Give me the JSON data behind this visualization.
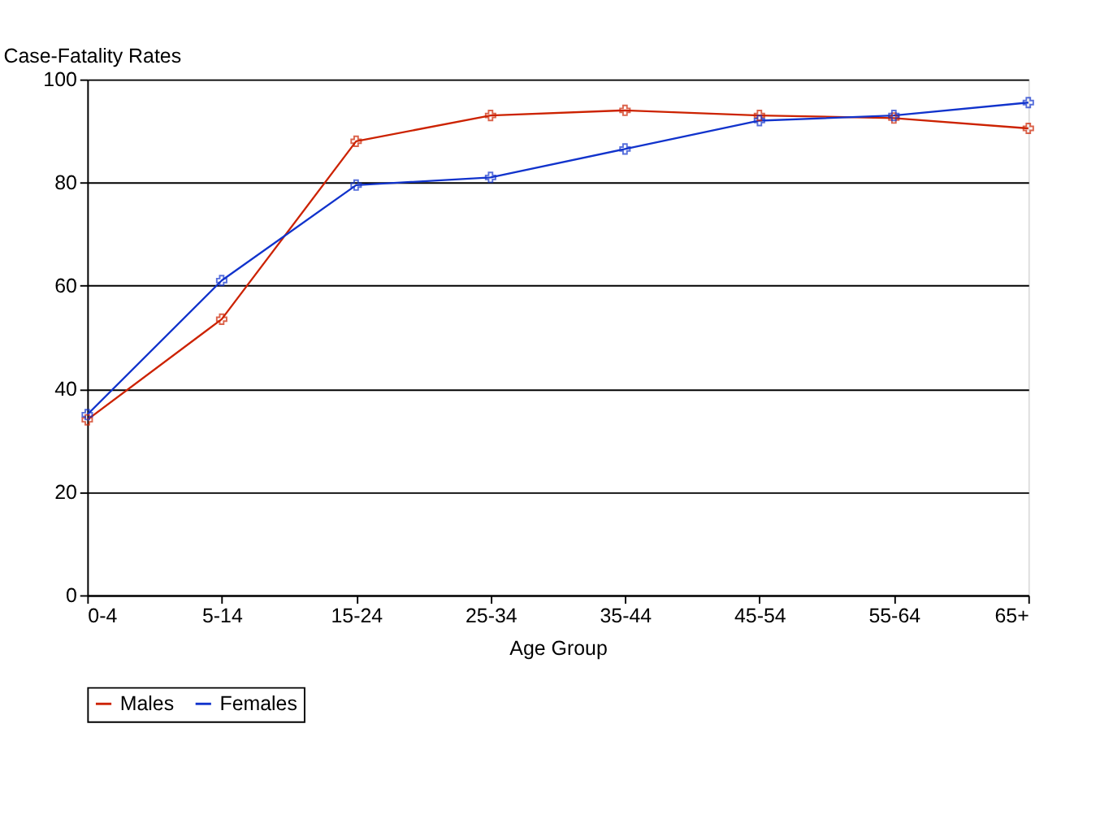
{
  "chart_data": {
    "type": "line",
    "ylabel": "Case-Fatality Rates",
    "xlabel": "Age Group",
    "categories": [
      "0-4",
      "5-14",
      "15-24",
      "25-34",
      "35-44",
      "45-54",
      "55-64",
      "65+"
    ],
    "series": [
      {
        "name": "Males",
        "color": "#cc2200",
        "values": [
          34,
          53.5,
          88,
          93,
          94,
          93,
          92.5,
          90.5
        ]
      },
      {
        "name": "Females",
        "color": "#1133cc",
        "values": [
          35,
          61,
          79.5,
          81,
          86.5,
          92,
          93,
          95.5
        ]
      }
    ],
    "ylim": [
      0,
      100
    ],
    "yticks": [
      0,
      20,
      40,
      60,
      80,
      100
    ],
    "grid": "y",
    "legend": "bottom",
    "marker": "cross",
    "line_style": "solid"
  }
}
